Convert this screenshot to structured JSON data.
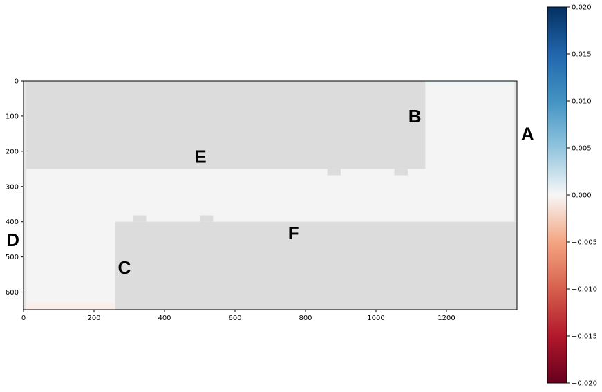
{
  "chart_data": {
    "type": "heatmap",
    "title": "",
    "xlabel": "",
    "ylabel": "",
    "xlim": [
      0,
      1400
    ],
    "ylim": [
      650,
      0
    ],
    "x_ticks": [
      "0",
      "200",
      "400",
      "600",
      "800",
      "1000",
      "1200"
    ],
    "y_ticks": [
      "0",
      "100",
      "200",
      "300",
      "400",
      "500",
      "600"
    ],
    "colormap": "RdBu",
    "colorbar": {
      "vmin": -0.02,
      "vmax": 0.02,
      "ticks": [
        "0.020",
        "0.015",
        "0.010",
        "0.005",
        "0.000",
        "−0.005",
        "−0.010",
        "−0.015",
        "−0.020"
      ]
    },
    "regions": [
      {
        "name": "upper-band",
        "fill": "#dcdcdc",
        "x": [
          0,
          1140
        ],
        "y": [
          0,
          250
        ]
      },
      {
        "name": "lower-band",
        "fill": "#dcdcdc",
        "x": [
          260,
          1400
        ],
        "y": [
          400,
          650
        ]
      },
      {
        "name": "notch-upper-1",
        "fill": "#dcdcdc",
        "x": [
          862,
          900
        ],
        "y": [
          250,
          268
        ]
      },
      {
        "name": "notch-upper-2",
        "fill": "#dcdcdc",
        "x": [
          1052,
          1090
        ],
        "y": [
          250,
          268
        ]
      },
      {
        "name": "notch-lower-1",
        "fill": "#dcdcdc",
        "x": [
          310,
          348
        ],
        "y": [
          382,
          400
        ]
      },
      {
        "name": "notch-lower-2",
        "fill": "#dcdcdc",
        "x": [
          500,
          538
        ],
        "y": [
          382,
          400
        ]
      },
      {
        "name": "left-strip",
        "fill": "#e4e4e4",
        "x": [
          0,
          8
        ],
        "y": [
          0,
          650
        ]
      },
      {
        "name": "right-strip",
        "fill": "#e4e4e4",
        "x": [
          1392,
          1400
        ],
        "y": [
          0,
          400
        ]
      },
      {
        "name": "tint-top-right",
        "fill": "#eef5f7",
        "x": [
          1140,
          1392
        ],
        "y": [
          0,
          14
        ]
      },
      {
        "name": "tint-bottom-left",
        "fill": "#f9eeea",
        "x": [
          8,
          260
        ],
        "y": [
          630,
          650
        ]
      }
    ],
    "background_fill": "#f4f4f4",
    "labels": [
      {
        "text": "A",
        "x": 1430,
        "y": 150
      },
      {
        "text": "B",
        "x": 1110,
        "y": 100
      },
      {
        "text": "C",
        "x": 286,
        "y": 530
      },
      {
        "text": "D",
        "x": -30,
        "y": 452
      },
      {
        "text": "E",
        "x": 502,
        "y": 215
      },
      {
        "text": "F",
        "x": 766,
        "y": 432
      }
    ]
  }
}
